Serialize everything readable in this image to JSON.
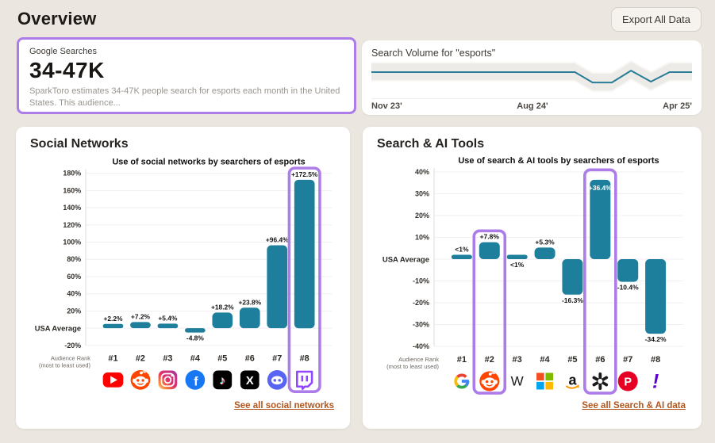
{
  "header": {
    "title": "Overview",
    "export_button_label": "Export All Data"
  },
  "google_searches_card": {
    "label": "Google Searches",
    "value": "34-47K",
    "description": "SparkToro estimates 34-47K people search for esports each month in the United States. This audience..."
  },
  "social_card": {
    "title": "Social Networks",
    "link_label": "See all social networks"
  },
  "search_ai_card": {
    "title": "Search & AI Tools",
    "link_label": "See all Search & AI data"
  },
  "colors": {
    "bar_teal": "#1e7f9c",
    "highlight_purple": "#ac7ce8",
    "link_orange": "#b1561e",
    "page_bg": "#ebe7e0",
    "grid": "#f2eef3",
    "sparkline": "#2a7d96",
    "spark_band": "#edebe8"
  },
  "chart_data": [
    {
      "id": "volume",
      "type": "line",
      "title": "Search Volume for \"esports\"",
      "x_labels": [
        "Nov 23'",
        "Aug 24'",
        "Apr 25'"
      ],
      "note": "normalized monthly search volume, 1 = baseline",
      "points": [
        [
          0,
          1
        ],
        [
          0.635,
          1
        ],
        [
          0.69,
          0.13
        ],
        [
          0.75,
          0.13
        ],
        [
          0.81,
          1.13
        ],
        [
          0.872,
          0.2
        ],
        [
          0.93,
          1
        ],
        [
          1,
          1
        ]
      ]
    },
    {
      "id": "social",
      "type": "bar",
      "title": "Use of social networks by searchers of esports",
      "zero_label": "USA Average",
      "axis_label_line1": "Audience Rank",
      "axis_label_line2": "(most to least used)",
      "ylim": [
        -20,
        180
      ],
      "ticks": [
        180,
        160,
        140,
        120,
        100,
        80,
        60,
        40,
        20,
        0,
        -20
      ],
      "bars": [
        {
          "rank": "#1",
          "name": "YouTube",
          "icon": "youtube",
          "value": 2.2,
          "label": "+2.2%",
          "label_pos": "above"
        },
        {
          "rank": "#2",
          "name": "Reddit",
          "icon": "reddit",
          "value": 7.2,
          "label": "+7.2%",
          "label_pos": "above"
        },
        {
          "rank": "#3",
          "name": "Instagram",
          "icon": "instagram",
          "value": 5.4,
          "label": "+5.4%",
          "label_pos": "above"
        },
        {
          "rank": "#4",
          "name": "Facebook",
          "icon": "facebook",
          "value": -4.8,
          "label": "-4.8%",
          "label_pos": "below"
        },
        {
          "rank": "#5",
          "name": "TikTok",
          "icon": "tiktok",
          "value": 18.2,
          "label": "+18.2%",
          "label_pos": "above"
        },
        {
          "rank": "#6",
          "name": "X",
          "icon": "x",
          "value": 23.8,
          "label": "+23.8%",
          "label_pos": "above"
        },
        {
          "rank": "#7",
          "name": "Discord",
          "icon": "discord",
          "value": 96.4,
          "label": "+96.4%",
          "label_pos": "above"
        },
        {
          "rank": "#8",
          "name": "Twitch",
          "icon": "twitch",
          "value": 172.5,
          "label": "+172.5%",
          "label_pos": "above"
        }
      ],
      "highlights": [
        {
          "bar_index": 7,
          "top_value": 186
        }
      ]
    },
    {
      "id": "searchai",
      "type": "bar",
      "title": "Use of search & AI tools by searchers of esports",
      "zero_label": "USA Average",
      "axis_label_line1": "Audience Rank",
      "axis_label_line2": "(most to least used)",
      "ylim": [
        -40,
        40
      ],
      "ticks": [
        40,
        30,
        20,
        10,
        0,
        -10,
        -20,
        -30,
        -40
      ],
      "bars": [
        {
          "rank": "#1",
          "name": "Google",
          "icon": "google",
          "value": 0.8,
          "label": "<1%",
          "label_pos": "above"
        },
        {
          "rank": "#2",
          "name": "Reddit",
          "icon": "reddit",
          "value": 7.8,
          "label": "+7.8%",
          "label_pos": "above"
        },
        {
          "rank": "#3",
          "name": "Wikipedia",
          "icon": "wikipedia",
          "value": 0.5,
          "label": "<1%",
          "label_pos": "below"
        },
        {
          "rank": "#4",
          "name": "Microsoft",
          "icon": "microsoft",
          "value": 5.3,
          "label": "+5.3%",
          "label_pos": "above"
        },
        {
          "rank": "#5",
          "name": "Amazon",
          "icon": "amazon",
          "value": -16.3,
          "label": "-16.3%",
          "label_pos": "below"
        },
        {
          "rank": "#6",
          "name": "ChatGPT",
          "icon": "openai",
          "value": 36.4,
          "label": "+36.4%",
          "label_pos": "inside"
        },
        {
          "rank": "#7",
          "name": "Pinterest",
          "icon": "pinterest",
          "value": -10.4,
          "label": "-10.4%",
          "label_pos": "below"
        },
        {
          "rank": "#8",
          "name": "Yahoo",
          "icon": "yahoo",
          "value": -34.2,
          "label": "-34.2%",
          "label_pos": "below"
        }
      ],
      "highlights": [
        {
          "bar_index": 1,
          "top_value": 13
        },
        {
          "bar_index": 5,
          "top_value": 41
        }
      ]
    }
  ]
}
